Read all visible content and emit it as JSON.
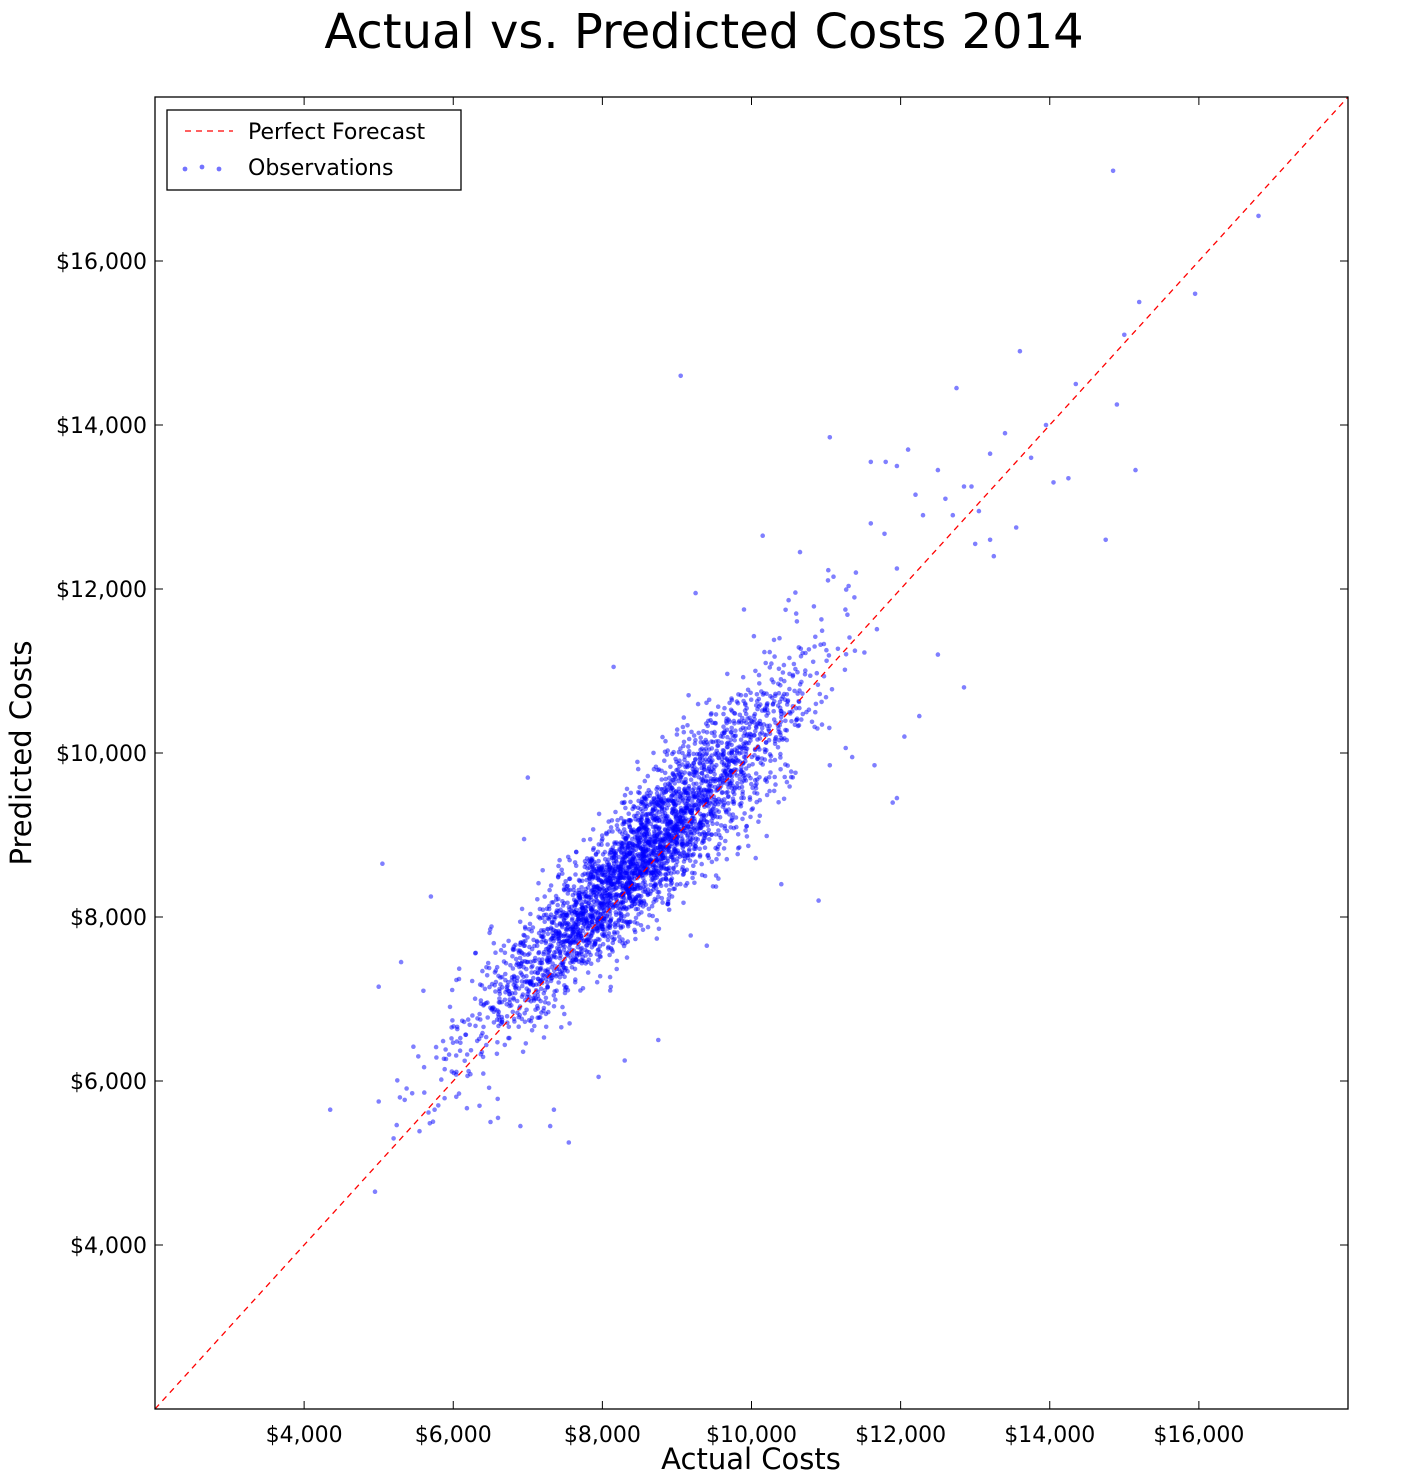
{
  "chart_data": {
    "type": "scatter",
    "title": "Actual vs. Predicted Costs 2014",
    "xlabel": "Actual Costs",
    "ylabel": "Predicted Costs",
    "xlim": [
      2000,
      18000
    ],
    "ylim": [
      2000,
      18000
    ],
    "x_ticks": [
      4000,
      6000,
      8000,
      10000,
      12000,
      14000,
      16000
    ],
    "x_tick_labels": [
      "$4,000",
      "$6,000",
      "$8,000",
      "$10,000",
      "$12,000",
      "$14,000",
      "$16,000"
    ],
    "y_ticks": [
      4000,
      6000,
      8000,
      10000,
      12000,
      14000,
      16000
    ],
    "y_tick_labels": [
      "$4,000",
      "$6,000",
      "$8,000",
      "$10,000",
      "$12,000",
      "$14,000",
      "$16,000"
    ],
    "grid": false,
    "legend_position": "top-left",
    "colors": {
      "line": "#ff0000",
      "points": "#0000ff",
      "axes": "#000000"
    },
    "series": [
      {
        "name": "Perfect Forecast",
        "kind": "line",
        "style": "dashed",
        "x": [
          2000,
          18000
        ],
        "y": [
          2000,
          18000
        ]
      },
      {
        "name": "Observations",
        "kind": "scatter",
        "points": [
          [
            14850,
            17100
          ],
          [
            16800,
            16550
          ],
          [
            15200,
            15500
          ],
          [
            15950,
            15600
          ],
          [
            15000,
            15100
          ],
          [
            13600,
            14900
          ],
          [
            9050,
            14600
          ],
          [
            12750,
            14450
          ],
          [
            14350,
            14500
          ],
          [
            14900,
            14250
          ],
          [
            13950,
            14000
          ],
          [
            13400,
            13900
          ],
          [
            11050,
            13850
          ],
          [
            13750,
            13600
          ],
          [
            13200,
            13650
          ],
          [
            15150,
            13450
          ],
          [
            14250,
            13350
          ],
          [
            14050,
            13300
          ],
          [
            12100,
            13700
          ],
          [
            11950,
            13500
          ],
          [
            11600,
            13550
          ],
          [
            11800,
            13550
          ],
          [
            12500,
            13450
          ],
          [
            12850,
            13250
          ],
          [
            12950,
            13250
          ],
          [
            13050,
            12950
          ],
          [
            12600,
            13100
          ],
          [
            12200,
            13150
          ],
          [
            12300,
            12900
          ],
          [
            12700,
            12900
          ],
          [
            13550,
            12750
          ],
          [
            13000,
            12550
          ],
          [
            13200,
            12600
          ],
          [
            14750,
            12600
          ],
          [
            13250,
            12400
          ],
          [
            10150,
            12650
          ],
          [
            10650,
            12450
          ],
          [
            11600,
            12800
          ],
          [
            11950,
            12250
          ],
          [
            12850,
            10800
          ],
          [
            12500,
            11200
          ],
          [
            12250,
            10450
          ],
          [
            12050,
            10200
          ],
          [
            11950,
            9450
          ],
          [
            11650,
            9850
          ],
          [
            10900,
            8200
          ],
          [
            10400,
            8400
          ],
          [
            11050,
            9850
          ],
          [
            11350,
            9950
          ],
          [
            9250,
            11950
          ],
          [
            8150,
            11050
          ],
          [
            5050,
            8650
          ],
          [
            5700,
            8250
          ],
          [
            4350,
            5650
          ],
          [
            4950,
            4650
          ],
          [
            5000,
            5750
          ],
          [
            5000,
            7150
          ],
          [
            5300,
            7450
          ],
          [
            5600,
            7100
          ],
          [
            7550,
            5250
          ],
          [
            7300,
            5450
          ],
          [
            7350,
            5650
          ],
          [
            6900,
            5450
          ],
          [
            6600,
            5550
          ],
          [
            8300,
            6250
          ],
          [
            7950,
            6050
          ],
          [
            8750,
            6500
          ],
          [
            9400,
            7650
          ],
          [
            5200,
            5300
          ],
          [
            5450,
            5850
          ],
          [
            5750,
            5650
          ],
          [
            6500,
            5500
          ],
          [
            7000,
            9700
          ],
          [
            6950,
            8950
          ],
          [
            9900,
            11750
          ],
          [
            10600,
            11700
          ],
          [
            11400,
            12200
          ],
          [
            11100,
            12150
          ],
          [
            9450,
            10400
          ],
          [
            10100,
            10950
          ]
        ]
      }
    ],
    "cloud": {
      "n": 3400,
      "center": [
        8500,
        8700
      ],
      "spread_x": 1050,
      "corr": 0.91,
      "range": [
        5200,
        12400
      ]
    }
  }
}
